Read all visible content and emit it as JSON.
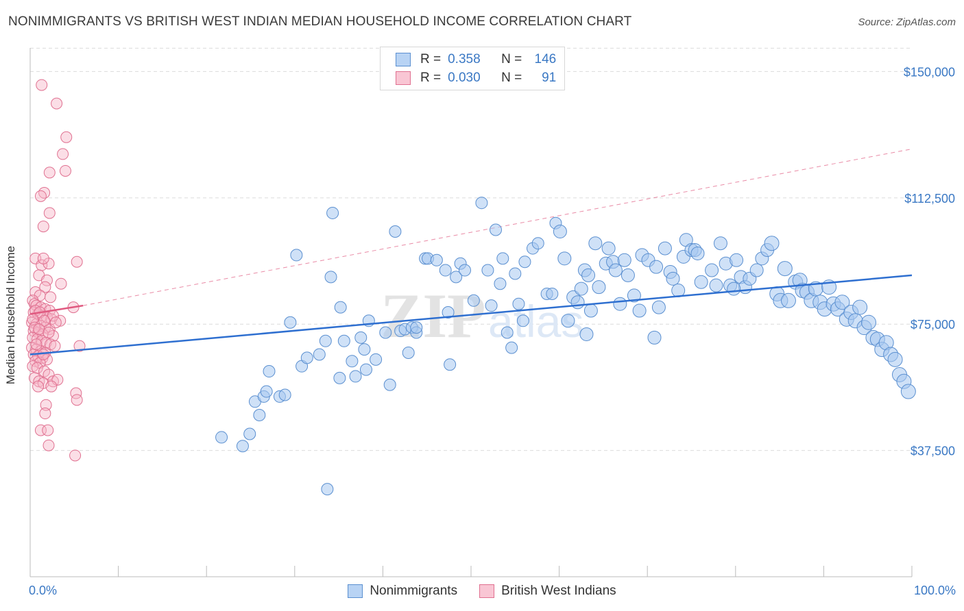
{
  "title": "NONIMMIGRANTS VS BRITISH WEST INDIAN MEDIAN HOUSEHOLD INCOME CORRELATION CHART",
  "source": "Source: ZipAtlas.com",
  "y_axis_label": "Median Household Income",
  "legend_top": {
    "r_label": "R =",
    "n_label": "N =",
    "rows": [
      {
        "r": "0.358",
        "n": "146"
      },
      {
        "r": "0.030",
        "n": "91"
      }
    ]
  },
  "legend_bottom": [
    "Nonimmigrants",
    "British West Indians"
  ],
  "x_tick_labels": {
    "left": "0.0%",
    "right": "100.0%"
  },
  "y_tick_labels": [
    "$150,000",
    "$112,500",
    "$75,000",
    "$37,500"
  ],
  "watermark": {
    "zip": "ZIP",
    "atlas": "atlas"
  },
  "colors": {
    "blue_fill": "#a8c8f0",
    "blue_stroke": "#5a8fd0",
    "blue_line": "#2e6fd0",
    "pink_fill": "#f6b6c8",
    "pink_stroke": "#e07090",
    "pink_line": "#e05a80",
    "axis_text": "#3a78c4",
    "grid": "#dcdcdc"
  },
  "chart_data": {
    "type": "scatter",
    "title": "NONIMMIGRANTS VS BRITISH WEST INDIAN MEDIAN HOUSEHOLD INCOME CORRELATION CHART",
    "xlabel": "",
    "ylabel": "Median Household Income",
    "xlim": [
      0,
      100
    ],
    "ylim": [
      0,
      157000
    ],
    "y_ticks": [
      37500,
      75000,
      112500,
      150000
    ],
    "legend_placement": "top-center",
    "series": [
      {
        "name": "Nonimmigrants",
        "r": 0.358,
        "n": 146,
        "trend": {
          "x": [
            0,
            100
          ],
          "y": [
            66000,
            89500
          ],
          "style": "solid"
        },
        "points": [
          [
            21.7,
            41.4
          ],
          [
            24.1,
            38.8
          ],
          [
            24.9,
            42.4
          ],
          [
            25.5,
            52
          ],
          [
            26,
            48
          ],
          [
            26.5,
            53.5
          ],
          [
            26.8,
            55
          ],
          [
            27.1,
            61
          ],
          [
            28.3,
            53.5
          ],
          [
            28.9,
            54
          ],
          [
            29.5,
            75.5
          ],
          [
            30.2,
            95.5
          ],
          [
            30.8,
            62.5
          ],
          [
            31.4,
            65
          ],
          [
            32.8,
            66
          ],
          [
            33.5,
            70
          ],
          [
            34.1,
            89
          ],
          [
            34.3,
            108
          ],
          [
            35.1,
            59
          ],
          [
            35.2,
            80
          ],
          [
            35.6,
            70
          ],
          [
            36.5,
            64
          ],
          [
            36.9,
            59.5
          ],
          [
            37.5,
            71
          ],
          [
            37.9,
            67.5
          ],
          [
            38.1,
            61.5
          ],
          [
            38.4,
            76
          ],
          [
            39.2,
            64.5
          ],
          [
            40.3,
            72.5
          ],
          [
            40.8,
            57
          ],
          [
            41.4,
            102.5
          ],
          [
            42,
            73
          ],
          [
            42.5,
            73.5
          ],
          [
            42.9,
            66.5
          ],
          [
            43.3,
            74
          ],
          [
            43.8,
            72.5
          ],
          [
            44.8,
            94.5
          ],
          [
            45.1,
            94.5
          ],
          [
            46.1,
            94
          ],
          [
            47.1,
            91
          ],
          [
            47.4,
            78.5
          ],
          [
            47.6,
            63
          ],
          [
            48.3,
            89
          ],
          [
            48.8,
            93
          ],
          [
            49.3,
            91
          ],
          [
            50.3,
            82
          ],
          [
            51.2,
            111
          ],
          [
            51.9,
            91
          ],
          [
            52.8,
            103
          ],
          [
            53.3,
            87
          ],
          [
            53.6,
            94.5
          ],
          [
            54.1,
            72.5
          ],
          [
            54.6,
            68
          ],
          [
            55,
            90
          ],
          [
            55.4,
            81
          ],
          [
            55.9,
            76
          ],
          [
            56.1,
            93.5
          ],
          [
            57,
            97.5
          ],
          [
            57.6,
            99
          ],
          [
            58.6,
            84
          ],
          [
            59.2,
            84
          ],
          [
            59.6,
            105
          ],
          [
            60.1,
            102.5
          ],
          [
            60.6,
            94.5
          ],
          [
            61,
            76
          ],
          [
            61.6,
            83
          ],
          [
            62.1,
            81.5
          ],
          [
            62.5,
            85.5
          ],
          [
            62.9,
            91
          ],
          [
            63.3,
            89.5
          ],
          [
            63.6,
            79
          ],
          [
            64.1,
            99
          ],
          [
            64.5,
            86
          ],
          [
            65.3,
            93
          ],
          [
            65.6,
            97.5
          ],
          [
            66.1,
            93.5
          ],
          [
            66.4,
            91
          ],
          [
            66.9,
            81
          ],
          [
            67.4,
            94
          ],
          [
            67.8,
            89.5
          ],
          [
            68.5,
            83.5
          ],
          [
            69.1,
            79
          ],
          [
            69.4,
            95.5
          ],
          [
            70.1,
            94
          ],
          [
            71,
            92
          ],
          [
            71.3,
            80
          ],
          [
            72,
            97.5
          ],
          [
            72.6,
            90.5
          ],
          [
            72.9,
            88.5
          ],
          [
            73.5,
            85
          ],
          [
            74.1,
            95
          ],
          [
            74.4,
            100
          ],
          [
            75,
            97
          ],
          [
            75.4,
            97
          ],
          [
            75.7,
            96
          ],
          [
            76.1,
            87.5
          ],
          [
            77.3,
            91
          ],
          [
            77.8,
            86.5
          ],
          [
            78.3,
            99
          ],
          [
            78.9,
            93
          ],
          [
            79.4,
            86.5
          ],
          [
            80.1,
            94
          ],
          [
            80.6,
            89
          ],
          [
            81.1,
            86
          ],
          [
            81.6,
            88.5
          ],
          [
            82.4,
            91
          ],
          [
            83,
            94.5
          ],
          [
            83.6,
            97
          ],
          [
            84.1,
            99
          ],
          [
            84.7,
            84
          ],
          [
            85.1,
            82
          ],
          [
            85.6,
            91.5
          ],
          [
            86,
            82
          ],
          [
            86.8,
            87.5
          ],
          [
            87.3,
            88
          ],
          [
            87.6,
            85
          ],
          [
            88.1,
            84.5
          ],
          [
            88.6,
            82
          ],
          [
            89.1,
            85.5
          ],
          [
            89.6,
            81.5
          ],
          [
            90.1,
            79.5
          ],
          [
            90.6,
            86
          ],
          [
            91.1,
            81
          ],
          [
            91.6,
            79.5
          ],
          [
            92.1,
            81.5
          ],
          [
            92.6,
            76.5
          ],
          [
            93.1,
            78.5
          ],
          [
            93.6,
            76
          ],
          [
            94.1,
            80
          ],
          [
            94.6,
            74
          ],
          [
            95.1,
            75.5
          ],
          [
            95.6,
            71
          ],
          [
            96.1,
            70.5
          ],
          [
            96.6,
            67.5
          ],
          [
            97.1,
            69.5
          ],
          [
            97.6,
            66
          ],
          [
            98.1,
            64.5
          ],
          [
            98.6,
            60
          ],
          [
            99.1,
            58
          ],
          [
            99.6,
            55
          ],
          [
            63.1,
            72
          ],
          [
            70.8,
            71
          ],
          [
            33.7,
            26
          ],
          [
            43.8,
            74
          ],
          [
            52.3,
            80.5
          ],
          [
            79.8,
            85.5
          ]
        ]
      },
      {
        "name": "British West Indians",
        "r": 0.03,
        "n": 91,
        "trend_solid": {
          "x": [
            0,
            6
          ],
          "y": [
            78000,
            80500
          ]
        },
        "trend_dashed": {
          "x": [
            6,
            100
          ],
          "y": [
            80500,
            127000
          ]
        },
        "points": [
          [
            1.3,
            146
          ],
          [
            3,
            140.5
          ],
          [
            4.1,
            130.5
          ],
          [
            3.7,
            125.5
          ],
          [
            2.2,
            120
          ],
          [
            4,
            120.5
          ],
          [
            1.6,
            114
          ],
          [
            1.2,
            113
          ],
          [
            2.2,
            108
          ],
          [
            1.5,
            104
          ],
          [
            0.6,
            94.5
          ],
          [
            1.3,
            92.5
          ],
          [
            2.1,
            93
          ],
          [
            1.5,
            94.5
          ],
          [
            5.3,
            93.5
          ],
          [
            1,
            89.5
          ],
          [
            1.9,
            88
          ],
          [
            3.5,
            87
          ],
          [
            1.7,
            86
          ],
          [
            0.6,
            84.5
          ],
          [
            1.1,
            83.5
          ],
          [
            2.3,
            83
          ],
          [
            0.3,
            82
          ],
          [
            0.5,
            81
          ],
          [
            0.7,
            80.5
          ],
          [
            1.2,
            80
          ],
          [
            1.7,
            79.5
          ],
          [
            2.2,
            79
          ],
          [
            4.9,
            80
          ],
          [
            0.4,
            78.5
          ],
          [
            0.9,
            78
          ],
          [
            1.4,
            77.5
          ],
          [
            1.9,
            77
          ],
          [
            2.4,
            76.5
          ],
          [
            3.4,
            76
          ],
          [
            0.2,
            75.5
          ],
          [
            0.7,
            75
          ],
          [
            1.2,
            74.5
          ],
          [
            1.7,
            74
          ],
          [
            2.2,
            73.5
          ],
          [
            0.4,
            73
          ],
          [
            0.9,
            72.5
          ],
          [
            1.4,
            72
          ],
          [
            2.6,
            71.5
          ],
          [
            0.3,
            71
          ],
          [
            0.8,
            70.5
          ],
          [
            1.3,
            70
          ],
          [
            1.8,
            69.5
          ],
          [
            2.3,
            69
          ],
          [
            2.8,
            68.5
          ],
          [
            5.6,
            68.5
          ],
          [
            0.2,
            68
          ],
          [
            0.7,
            67.5
          ],
          [
            1.2,
            67
          ],
          [
            1.7,
            66.5
          ],
          [
            0.4,
            66
          ],
          [
            0.9,
            65.5
          ],
          [
            1.4,
            65
          ],
          [
            1.9,
            64.5
          ],
          [
            0.6,
            64
          ],
          [
            1.1,
            63.5
          ],
          [
            0.3,
            62.5
          ],
          [
            0.8,
            62
          ],
          [
            1.6,
            61
          ],
          [
            2.1,
            60
          ],
          [
            0.5,
            59
          ],
          [
            1.0,
            58
          ],
          [
            1.5,
            57.5
          ],
          [
            2.6,
            58
          ],
          [
            3.1,
            58.5
          ],
          [
            0.9,
            56.5
          ],
          [
            2.4,
            56.5
          ],
          [
            5.2,
            54.5
          ],
          [
            5.3,
            52.5
          ],
          [
            1.8,
            51
          ],
          [
            1.7,
            48.5
          ],
          [
            1.2,
            43.5
          ],
          [
            2.0,
            43.5
          ],
          [
            2.1,
            39
          ],
          [
            5.1,
            36
          ],
          [
            0.6,
            79
          ],
          [
            1.1,
            78.5
          ],
          [
            2.6,
            77.5
          ],
          [
            0.3,
            76.5
          ],
          [
            1.6,
            76
          ],
          [
            2.9,
            75.5
          ],
          [
            0.5,
            74
          ],
          [
            1.0,
            73.5
          ],
          [
            2.1,
            72.5
          ],
          [
            0.7,
            69
          ],
          [
            1.5,
            66
          ]
        ]
      }
    ]
  }
}
